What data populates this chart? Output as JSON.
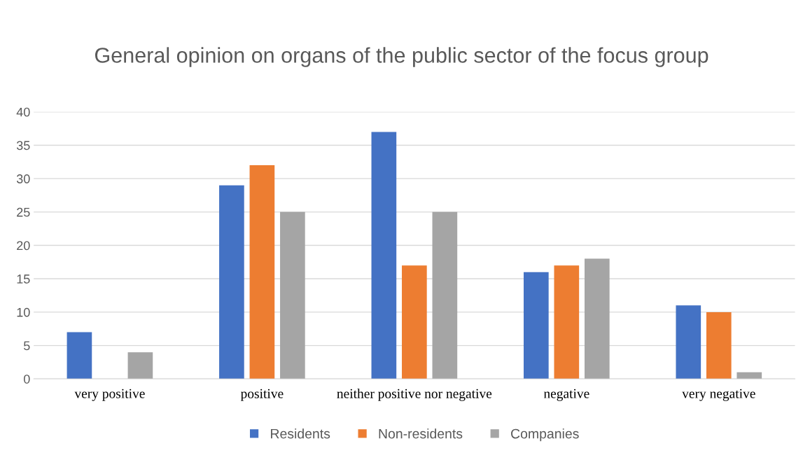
{
  "chart_data": {
    "type": "bar",
    "title": "General opinion on organs of the public sector of the focus group",
    "categories": [
      "very positive",
      "positive",
      "neither positive nor negative",
      "negative",
      "very negative"
    ],
    "series": [
      {
        "name": "Residents",
        "color": "#4472c4",
        "values": [
          7,
          29,
          37,
          16,
          11
        ]
      },
      {
        "name": "Non-residents",
        "color": "#ed7d31",
        "values": [
          null,
          32,
          17,
          17,
          10
        ]
      },
      {
        "name": "Companies",
        "color": "#a5a5a5",
        "values": [
          4,
          25,
          25,
          18,
          1
        ]
      }
    ],
    "ylim": [
      0,
      40
    ],
    "yticks": [
      0,
      5,
      10,
      15,
      20,
      25,
      30,
      35,
      40
    ],
    "grid": "y",
    "legend": "bottom"
  }
}
